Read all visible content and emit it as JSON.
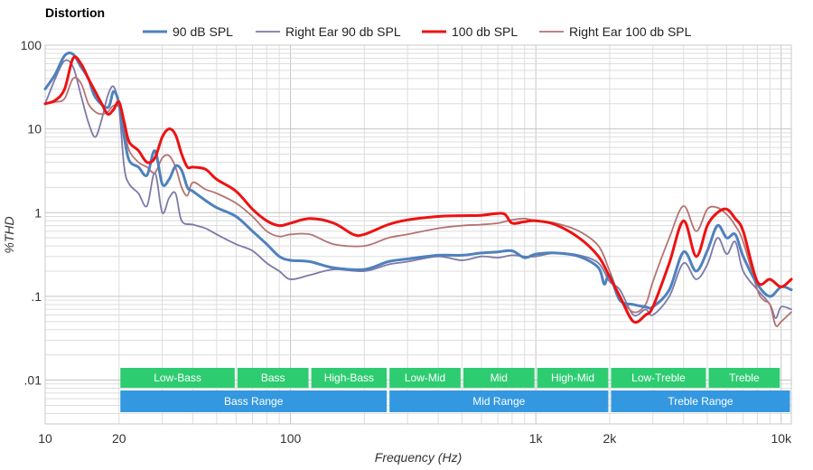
{
  "chart_data": {
    "type": "line",
    "title": "Distortion",
    "xlabel": "Frequency (Hz)",
    "ylabel": "%THD",
    "x_scale": "log",
    "y_scale": "log",
    "xlim": [
      10,
      11000
    ],
    "ylim": [
      0.003,
      100
    ],
    "grid": true,
    "legend_position": "top",
    "x_ticks": [
      {
        "value": 10,
        "label": "10"
      },
      {
        "value": 20,
        "label": "20"
      },
      {
        "value": 100,
        "label": "100"
      },
      {
        "value": 1000,
        "label": "1k"
      },
      {
        "value": 2000,
        "label": "2k"
      },
      {
        "value": 10000,
        "label": "10k"
      }
    ],
    "y_ticks": [
      {
        "value": 100,
        "label": "100"
      },
      {
        "value": 10,
        "label": "10"
      },
      {
        "value": 1,
        "label": "1"
      },
      {
        "value": 0.1,
        "label": ".1"
      },
      {
        "value": 0.01,
        "label": ".01"
      }
    ],
    "series": [
      {
        "name": "90 dB SPL",
        "color": "#4f81bd",
        "width": 3,
        "x": [
          10,
          11,
          12,
          13,
          14,
          15,
          16,
          18,
          19,
          20,
          21,
          22,
          24,
          26,
          28,
          30,
          32,
          34,
          36,
          38,
          40,
          45,
          50,
          60,
          70,
          80,
          90,
          100,
          120,
          150,
          200,
          250,
          300,
          400,
          500,
          600,
          700,
          800,
          900,
          1000,
          1200,
          1500,
          1800,
          1900,
          2000,
          2200,
          2500,
          2800,
          3000,
          3500,
          4000,
          4500,
          5000,
          5500,
          6000,
          6500,
          7000,
          8000,
          9000,
          10000,
          11000
        ],
        "y": [
          30,
          45,
          75,
          78,
          55,
          40,
          24,
          18,
          28,
          20,
          8,
          4.2,
          3.5,
          2.8,
          5.5,
          2.2,
          2.5,
          3.6,
          3.2,
          2.0,
          1.8,
          1.4,
          1.15,
          0.9,
          0.6,
          0.42,
          0.3,
          0.27,
          0.26,
          0.22,
          0.21,
          0.26,
          0.28,
          0.31,
          0.31,
          0.33,
          0.34,
          0.35,
          0.29,
          0.32,
          0.33,
          0.3,
          0.22,
          0.14,
          0.18,
          0.09,
          0.08,
          0.075,
          0.075,
          0.12,
          0.34,
          0.2,
          0.35,
          0.7,
          0.5,
          0.55,
          0.3,
          0.14,
          0.1,
          0.13,
          0.12
        ]
      },
      {
        "name": "Right Ear 90 db SPL",
        "color": "#7c7aa8",
        "width": 1.8,
        "x": [
          10,
          11,
          12,
          13,
          14,
          15,
          16,
          17,
          18,
          19,
          20,
          21,
          22,
          24,
          26,
          28,
          30,
          32,
          34,
          36,
          40,
          45,
          50,
          60,
          70,
          80,
          90,
          100,
          120,
          150,
          200,
          250,
          300,
          400,
          500,
          600,
          700,
          800,
          900,
          1000,
          1200,
          1500,
          1800,
          2000,
          2200,
          2500,
          2800,
          3000,
          3500,
          4000,
          4500,
          5000,
          5500,
          6000,
          6500,
          7000,
          8000,
          9000,
          9500,
          10000,
          11000
        ],
        "y": [
          20,
          40,
          65,
          55,
          25,
          12,
          8,
          13,
          25,
          32,
          18,
          3.5,
          2.2,
          1.7,
          1.2,
          3.0,
          1.0,
          1.5,
          1.7,
          0.8,
          0.72,
          0.65,
          0.55,
          0.42,
          0.35,
          0.25,
          0.2,
          0.16,
          0.18,
          0.21,
          0.2,
          0.24,
          0.26,
          0.3,
          0.27,
          0.3,
          0.29,
          0.31,
          0.3,
          0.3,
          0.33,
          0.31,
          0.25,
          0.15,
          0.12,
          0.06,
          0.07,
          0.06,
          0.1,
          0.25,
          0.16,
          0.24,
          0.5,
          0.32,
          0.45,
          0.2,
          0.12,
          0.08,
          0.055,
          0.075,
          0.07
        ]
      },
      {
        "name": "100 db SPL",
        "color": "#ee1111",
        "width": 3,
        "x": [
          10,
          11,
          12,
          13,
          14,
          15,
          16,
          17,
          18,
          19,
          20,
          21,
          22,
          24,
          26,
          28,
          30,
          32,
          34,
          36,
          38,
          40,
          45,
          50,
          60,
          70,
          80,
          90,
          100,
          120,
          150,
          180,
          200,
          250,
          300,
          400,
          500,
          600,
          700,
          750,
          800,
          900,
          1000,
          1200,
          1500,
          1800,
          2000,
          2200,
          2500,
          2800,
          3000,
          3500,
          4000,
          4500,
          5000,
          5500,
          6000,
          6500,
          7000,
          8000,
          9000,
          10000,
          11000
        ],
        "y": [
          20,
          22,
          30,
          70,
          60,
          40,
          28,
          20,
          15,
          17,
          21,
          12,
          7,
          5.5,
          4.0,
          4.5,
          8,
          10,
          8.5,
          5.0,
          3.5,
          3.5,
          3.3,
          2.5,
          1.8,
          1.1,
          0.8,
          0.7,
          0.75,
          0.85,
          0.75,
          0.55,
          0.55,
          0.72,
          0.82,
          0.9,
          0.92,
          0.93,
          0.98,
          0.95,
          0.75,
          0.78,
          0.8,
          0.72,
          0.5,
          0.3,
          0.17,
          0.1,
          0.05,
          0.06,
          0.075,
          0.25,
          0.8,
          0.3,
          0.7,
          1.0,
          1.1,
          0.85,
          0.6,
          0.15,
          0.16,
          0.13,
          0.16
        ]
      },
      {
        "name": "Right Ear 100 db SPL",
        "color": "#b57373",
        "width": 1.8,
        "x": [
          10,
          11,
          12,
          13,
          14,
          15,
          16,
          17,
          18,
          19,
          20,
          21,
          22,
          24,
          26,
          28,
          30,
          32,
          34,
          36,
          38,
          40,
          45,
          50,
          60,
          70,
          80,
          90,
          100,
          120,
          150,
          200,
          250,
          300,
          400,
          500,
          600,
          700,
          800,
          900,
          1000,
          1200,
          1500,
          1800,
          2000,
          2200,
          2500,
          2800,
          3000,
          3500,
          4000,
          4500,
          5000,
          5500,
          6000,
          6500,
          7000,
          8000,
          8500,
          9000,
          9500,
          10000,
          11000
        ],
        "y": [
          20,
          21,
          23,
          40,
          35,
          20,
          16,
          15,
          16,
          19,
          18,
          10,
          5.5,
          4.0,
          3.5,
          3.0,
          4.5,
          4.8,
          3.5,
          2.0,
          1.6,
          2.3,
          1.9,
          1.7,
          1.3,
          0.9,
          0.6,
          0.52,
          0.55,
          0.55,
          0.42,
          0.4,
          0.5,
          0.55,
          0.65,
          0.7,
          0.72,
          0.75,
          0.82,
          0.85,
          0.8,
          0.75,
          0.6,
          0.4,
          0.2,
          0.1,
          0.065,
          0.08,
          0.15,
          0.5,
          1.2,
          0.6,
          1.1,
          1.15,
          0.95,
          0.7,
          0.45,
          0.12,
          0.09,
          0.08,
          0.045,
          0.05,
          0.065
        ]
      }
    ],
    "bands": [
      {
        "label": "Low-Bass",
        "from": 20,
        "to": 60,
        "color": "#2ecc71",
        "row": 1
      },
      {
        "label": "Bass",
        "from": 60,
        "to": 120,
        "color": "#2ecc71",
        "row": 1
      },
      {
        "label": "High-Bass",
        "from": 120,
        "to": 250,
        "color": "#2ecc71",
        "row": 1
      },
      {
        "label": "Low-Mid",
        "from": 250,
        "to": 500,
        "color": "#2ecc71",
        "row": 1
      },
      {
        "label": "Mid",
        "from": 500,
        "to": 1000,
        "color": "#2ecc71",
        "row": 1
      },
      {
        "label": "High-Mid",
        "from": 1000,
        "to": 2000,
        "color": "#2ecc71",
        "row": 1
      },
      {
        "label": "Low-Treble",
        "from": 2000,
        "to": 5000,
        "color": "#2ecc71",
        "row": 1
      },
      {
        "label": "Treble",
        "from": 5000,
        "to": 10000,
        "color": "#2ecc71",
        "row": 1
      },
      {
        "label": "Bass Range",
        "from": 20,
        "to": 250,
        "color": "#3498e0",
        "row": 2
      },
      {
        "label": "Mid Range",
        "from": 250,
        "to": 2000,
        "color": "#3498e0",
        "row": 2
      },
      {
        "label": "Treble Range",
        "from": 2000,
        "to": 11000,
        "color": "#3498e0",
        "row": 2
      }
    ]
  }
}
